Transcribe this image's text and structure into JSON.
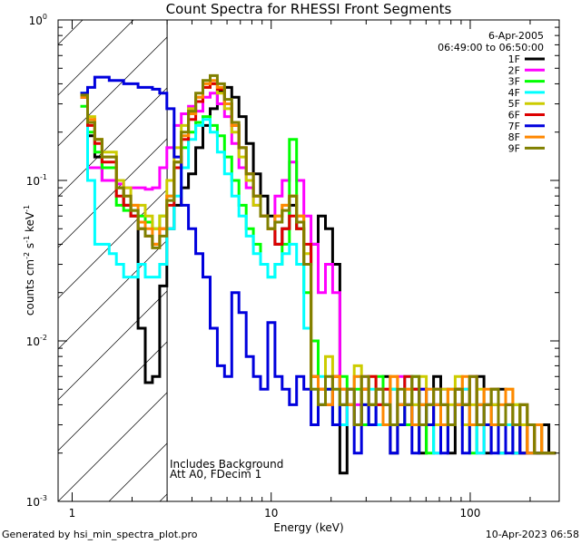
{
  "chart_data": {
    "type": "line",
    "title": "Count Spectra for RHESSI Front Segments",
    "xlabel": "Energy (keV)",
    "ylabel": "counts cm",
    "ylabel_exp1": "-2",
    "ylabel_mid": " s",
    "ylabel_exp2": "-1",
    "ylabel_end": " keV",
    "ylabel_exp3": "-1",
    "xscale": "log",
    "yscale": "log",
    "xlim": [
      0.85,
      280
    ],
    "ylim": [
      0.001,
      1.0
    ],
    "x_ticks": [
      {
        "value": 1,
        "label": "1"
      },
      {
        "value": 10,
        "label": "10"
      },
      {
        "value": 100,
        "label": "100"
      }
    ],
    "y_ticks": [
      {
        "value": 1.0,
        "base": "10",
        "exp": "0"
      },
      {
        "value": 0.1,
        "base": "10",
        "exp": "-1"
      },
      {
        "value": 0.01,
        "base": "10",
        "exp": "-2"
      },
      {
        "value": 0.001,
        "base": "10",
        "exp": "-3"
      }
    ],
    "attenuator_edge_kev": 3,
    "legend_position": "top-right",
    "date": "6-Apr-2005",
    "time_range": "06:49:00 to 06:50:00",
    "annotations": [
      "Includes Background",
      "Att A0, FDecim 1"
    ],
    "series": [
      {
        "name": "1F",
        "color": "#000000",
        "y": [
          0.33,
          0.19,
          0.14,
          0.1,
          0.1,
          0.09,
          0.07,
          0.06,
          0.012,
          0.0055,
          0.006,
          0.022,
          0.05,
          0.07,
          0.09,
          0.11,
          0.16,
          0.22,
          0.28,
          0.36,
          0.38,
          0.33,
          0.25,
          0.17,
          0.11,
          0.08,
          0.06,
          0.04,
          0.05,
          0.07,
          0.05,
          0.03,
          0.04,
          0.06,
          0.05,
          0.03,
          0.0015,
          0.004,
          0.003,
          0.005,
          0.004,
          0.003,
          0.006,
          0.002,
          0.004,
          0.003,
          0.005,
          0.002,
          0.004,
          0.006,
          0.003,
          0.002,
          0.005,
          0.004,
          0.003,
          0.006,
          0.002,
          0.004,
          0.005,
          0.003,
          0.002,
          0.004,
          0.003,
          0.002,
          0.003,
          0.002
        ]
      },
      {
        "name": "2F",
        "color": "#ff00ff",
        "y": [
          0.33,
          0.12,
          0.12,
          0.1,
          0.1,
          0.095,
          0.09,
          0.09,
          0.09,
          0.088,
          0.09,
          0.12,
          0.16,
          0.22,
          0.26,
          0.29,
          0.27,
          0.33,
          0.35,
          0.3,
          0.25,
          0.17,
          0.12,
          0.09,
          0.07,
          0.06,
          0.05,
          0.08,
          0.1,
          0.13,
          0.1,
          0.06,
          0.04,
          0.02,
          0.03,
          0.02,
          0.003,
          0.005,
          0.004,
          0.006,
          0.003,
          0.004,
          0.005,
          0.003,
          0.006,
          0.004,
          0.003,
          0.005,
          0.004,
          0.002,
          0.005,
          0.003,
          0.004,
          0.005,
          0.003,
          0.002,
          0.004,
          0.003,
          0.002,
          0.004,
          0.003,
          0.002,
          0.003,
          0.002,
          0.002,
          0.002
        ]
      },
      {
        "name": "3F",
        "color": "#00ff00",
        "y": [
          0.29,
          0.2,
          0.15,
          0.12,
          0.12,
          0.07,
          0.065,
          0.065,
          0.06,
          0.055,
          0.05,
          0.06,
          0.08,
          0.12,
          0.16,
          0.2,
          0.23,
          0.25,
          0.22,
          0.19,
          0.14,
          0.1,
          0.07,
          0.05,
          0.04,
          0.03,
          0.025,
          0.03,
          0.04,
          0.18,
          0.05,
          0.02,
          0.01,
          0.004,
          0.005,
          0.003,
          0.006,
          0.004,
          0.005,
          0.003,
          0.004,
          0.006,
          0.003,
          0.005,
          0.004,
          0.003,
          0.006,
          0.004,
          0.002,
          0.004,
          0.003,
          0.005,
          0.004,
          0.003,
          0.002,
          0.004,
          0.003,
          0.005,
          0.002,
          0.003,
          0.004,
          0.002,
          0.003,
          0.002,
          0.002,
          0.002
        ]
      },
      {
        "name": "4F",
        "color": "#00ffff",
        "y": [
          0.35,
          0.1,
          0.04,
          0.04,
          0.035,
          0.03,
          0.025,
          0.025,
          0.03,
          0.025,
          0.025,
          0.03,
          0.05,
          0.08,
          0.12,
          0.18,
          0.22,
          0.24,
          0.2,
          0.15,
          0.11,
          0.08,
          0.06,
          0.045,
          0.035,
          0.03,
          0.025,
          0.03,
          0.035,
          0.04,
          0.03,
          0.012,
          0.005,
          0.006,
          0.004,
          0.005,
          0.003,
          0.004,
          0.006,
          0.004,
          0.005,
          0.003,
          0.004,
          0.005,
          0.003,
          0.006,
          0.004,
          0.003,
          0.005,
          0.002,
          0.004,
          0.003,
          0.004,
          0.005,
          0.003,
          0.002,
          0.004,
          0.003,
          0.002,
          0.003,
          0.002,
          0.003,
          0.002,
          0.002,
          0.002,
          0.002
        ]
      },
      {
        "name": "5F",
        "color": "#cccc00",
        "y": [
          0.33,
          0.25,
          0.18,
          0.15,
          0.15,
          0.1,
          0.09,
          0.07,
          0.07,
          0.06,
          0.05,
          0.06,
          0.1,
          0.16,
          0.22,
          0.28,
          0.33,
          0.38,
          0.4,
          0.35,
          0.28,
          0.2,
          0.14,
          0.1,
          0.07,
          0.06,
          0.05,
          0.06,
          0.07,
          0.08,
          0.06,
          0.035,
          0.006,
          0.005,
          0.008,
          0.006,
          0.004,
          0.005,
          0.007,
          0.004,
          0.006,
          0.005,
          0.004,
          0.006,
          0.003,
          0.005,
          0.004,
          0.006,
          0.004,
          0.003,
          0.005,
          0.004,
          0.006,
          0.003,
          0.004,
          0.005,
          0.003,
          0.004,
          0.003,
          0.005,
          0.004,
          0.003,
          0.002,
          0.003,
          0.002,
          0.002
        ]
      },
      {
        "name": "6F",
        "color": "#dd0000",
        "y": [
          0.33,
          0.22,
          0.17,
          0.13,
          0.13,
          0.08,
          0.07,
          0.06,
          0.05,
          0.045,
          0.04,
          0.05,
          0.07,
          0.12,
          0.18,
          0.24,
          0.31,
          0.38,
          0.4,
          0.37,
          0.3,
          0.22,
          0.16,
          0.11,
          0.08,
          0.06,
          0.05,
          0.04,
          0.05,
          0.06,
          0.05,
          0.04,
          0.006,
          0.005,
          0.004,
          0.006,
          0.005,
          0.004,
          0.003,
          0.005,
          0.006,
          0.004,
          0.005,
          0.003,
          0.004,
          0.006,
          0.005,
          0.004,
          0.003,
          0.005,
          0.004,
          0.003,
          0.005,
          0.004,
          0.006,
          0.003,
          0.004,
          0.005,
          0.003,
          0.004,
          0.003,
          0.002,
          0.003,
          0.002,
          0.002,
          0.002
        ]
      },
      {
        "name": "7F",
        "color": "#0000dd",
        "y": [
          0.35,
          0.38,
          0.44,
          0.44,
          0.42,
          0.42,
          0.4,
          0.4,
          0.38,
          0.38,
          0.37,
          0.35,
          0.28,
          0.14,
          0.07,
          0.05,
          0.035,
          0.025,
          0.012,
          0.007,
          0.006,
          0.02,
          0.015,
          0.008,
          0.006,
          0.005,
          0.013,
          0.006,
          0.005,
          0.004,
          0.006,
          0.005,
          0.003,
          0.004,
          0.005,
          0.003,
          0.004,
          0.005,
          0.002,
          0.004,
          0.003,
          0.005,
          0.004,
          0.002,
          0.003,
          0.004,
          0.002,
          0.005,
          0.003,
          0.004,
          0.002,
          0.003,
          0.004,
          0.002,
          0.003,
          0.004,
          0.003,
          0.002,
          0.003,
          0.002,
          0.003,
          0.002,
          0.002,
          0.002,
          0.002,
          0.002
        ]
      },
      {
        "name": "8F",
        "color": "#ff8800",
        "y": [
          0.33,
          0.24,
          0.18,
          0.14,
          0.14,
          0.09,
          0.08,
          0.07,
          0.055,
          0.05,
          0.04,
          0.05,
          0.08,
          0.13,
          0.19,
          0.26,
          0.33,
          0.4,
          0.42,
          0.38,
          0.3,
          0.22,
          0.16,
          0.11,
          0.08,
          0.06,
          0.05,
          0.06,
          0.07,
          0.08,
          0.06,
          0.03,
          0.006,
          0.005,
          0.004,
          0.006,
          0.005,
          0.004,
          0.006,
          0.005,
          0.004,
          0.005,
          0.003,
          0.006,
          0.004,
          0.005,
          0.003,
          0.004,
          0.005,
          0.004,
          0.003,
          0.005,
          0.004,
          0.006,
          0.003,
          0.004,
          0.005,
          0.003,
          0.004,
          0.005,
          0.003,
          0.004,
          0.002,
          0.003,
          0.002,
          0.002
        ]
      },
      {
        "name": "9F",
        "color": "#808000",
        "y": [
          0.34,
          0.23,
          0.18,
          0.14,
          0.14,
          0.09,
          0.08,
          0.065,
          0.05,
          0.045,
          0.038,
          0.045,
          0.075,
          0.13,
          0.2,
          0.27,
          0.35,
          0.42,
          0.45,
          0.4,
          0.32,
          0.23,
          0.16,
          0.11,
          0.08,
          0.06,
          0.05,
          0.055,
          0.065,
          0.08,
          0.055,
          0.03,
          0.005,
          0.004,
          0.006,
          0.005,
          0.004,
          0.005,
          0.003,
          0.006,
          0.004,
          0.005,
          0.004,
          0.003,
          0.005,
          0.004,
          0.006,
          0.003,
          0.004,
          0.005,
          0.004,
          0.003,
          0.005,
          0.004,
          0.006,
          0.003,
          0.004,
          0.005,
          0.003,
          0.004,
          0.003,
          0.004,
          0.003,
          0.002,
          0.002,
          0.002
        ]
      }
    ]
  },
  "footer": {
    "left": "Generated by hsi_min_spectra_plot.pro",
    "right": "10-Apr-2023 06:58"
  }
}
